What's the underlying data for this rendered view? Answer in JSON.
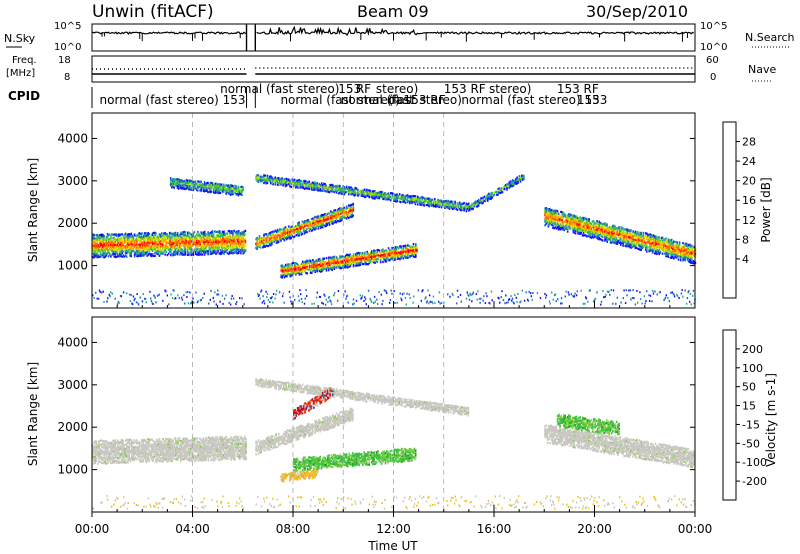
{
  "header": {
    "station": "Unwin (fitACF)",
    "beam": "Beam 09",
    "date": "30/Sep/2010"
  },
  "noise_panel": {
    "left_label": "N.Sky",
    "right_label": "N.Search",
    "left_ticks": [
      "10^5",
      "10^0"
    ],
    "right_ticks": [
      "10^5",
      "10^0"
    ]
  },
  "freq_panel": {
    "left_label_1": "Freq.",
    "left_label_2": "[MHz]",
    "right_label": "Nave",
    "left_ticks": [
      18,
      8
    ],
    "right_ticks": [
      60,
      0
    ]
  },
  "cpid": {
    "label": "CPID",
    "segments": [
      {
        "text": "normal (fast stereo) 153",
        "t": 0.3,
        "row": 2
      },
      {
        "text": "normal (fast stereo)",
        "t": 5.1,
        "row": 1
      },
      {
        "text": "normal (fast stereo) 153 RF",
        "t": 7.5,
        "row": 2
      },
      {
        "text": "153",
        "t": 9.8,
        "row": 1
      },
      {
        "text": "RF",
        "t": 10.5,
        "row": 1
      },
      {
        "text": "stereo)",
        "t": 11.3,
        "row": 1
      },
      {
        "text": "normal (fast",
        "t": 9.9,
        "row": 2
      },
      {
        "text": "(fast stereo)",
        "t": 11.8,
        "row": 2
      },
      {
        "text": "153 RF",
        "t": 14.0,
        "row": 1
      },
      {
        "text": "stereo)",
        "t": 15.8,
        "row": 1
      },
      {
        "text": "normal (fast stereo) 153",
        "t": 14.7,
        "row": 2
      },
      {
        "text": "153 RF",
        "t": 18.5,
        "row": 1
      },
      {
        "text": "153",
        "t": 19.3,
        "row": 2
      }
    ]
  },
  "chart_data": [
    {
      "type": "heatmap",
      "title": "Power",
      "ylabel": "Slant Range [km]",
      "xlabel": "Time UT",
      "xlim_hours": [
        0,
        24
      ],
      "ylim_km": [
        0,
        4600
      ],
      "yticks": [
        1000,
        2000,
        3000,
        4000
      ],
      "xticks": [
        "00:00",
        "04:00",
        "08:00",
        "12:00",
        "16:00",
        "20:00",
        "00:00"
      ],
      "colorbar": {
        "label": "Power [dB]",
        "ticks": [
          "28",
          "24",
          "20",
          "16",
          "12",
          "8",
          "4"
        ],
        "colors": [
          "#ff0000",
          "#ff5000",
          "#ff9000",
          "#ffd000",
          "#a0e000",
          "#40c040",
          "#20a0a0",
          "#2060c0",
          "#1010ff"
        ]
      },
      "bands": [
        {
          "t": [
            0,
            6.1
          ],
          "center_km": [
            1500,
            1600
          ],
          "width_km": 550,
          "strength": 0.9
        },
        {
          "t": [
            6.5,
            10.4
          ],
          "center_km": [
            1550,
            2350
          ],
          "width_km": 300,
          "strength": 0.95
        },
        {
          "t": [
            7.5,
            12.9
          ],
          "center_km": [
            900,
            1400
          ],
          "width_km": 300,
          "strength": 1.0
        },
        {
          "t": [
            18.0,
            24.0
          ],
          "center_km": [
            2200,
            1300
          ],
          "width_km": 450,
          "strength": 0.85
        },
        {
          "t": [
            6.5,
            15.0
          ],
          "center_km": [
            3100,
            2400
          ],
          "width_km": 180,
          "strength": 0.5
        },
        {
          "t": [
            15.0,
            17.2
          ],
          "center_km": [
            2400,
            3150
          ],
          "width_km": 150,
          "strength": 0.4
        },
        {
          "t": [
            3.1,
            6.0
          ],
          "center_km": [
            3000,
            2800
          ],
          "width_km": 250,
          "strength": 0.45
        }
      ]
    },
    {
      "type": "heatmap",
      "title": "Velocity",
      "ylabel": "Slant Range [km]",
      "xlabel": "Time UT",
      "xlim_hours": [
        0,
        24
      ],
      "ylim_km": [
        0,
        4600
      ],
      "yticks": [
        1000,
        2000,
        3000,
        4000
      ],
      "xticks": [
        "00:00",
        "04:00",
        "08:00",
        "12:00",
        "16:00",
        "20:00",
        "00:00"
      ],
      "colorbar": {
        "label": "Velocity [m s-1]",
        "ticks": [
          "200",
          "100",
          "50",
          "15",
          "-15",
          "-50",
          "-100",
          "-200"
        ],
        "colors": [
          "#1040c0",
          "#107060",
          "#20a020",
          "#80d040",
          "#c8c8c0",
          "#f0c020",
          "#f08020",
          "#f04010",
          "#e00000"
        ]
      },
      "bands": [
        {
          "t": [
            0,
            6.1
          ],
          "center_km": [
            1450,
            1550
          ],
          "width_km": 550,
          "class": "ground"
        },
        {
          "t": [
            6.5,
            10.4
          ],
          "center_km": [
            1550,
            2350
          ],
          "width_km": 300,
          "class": "ground"
        },
        {
          "t": [
            8.0,
            12.9
          ],
          "center_km": [
            1150,
            1400
          ],
          "width_km": 300,
          "class": "positive"
        },
        {
          "t": [
            7.5,
            9.0
          ],
          "center_km": [
            850,
            950
          ],
          "width_km": 200,
          "class": "negative_small"
        },
        {
          "t": [
            18.0,
            24.0
          ],
          "center_km": [
            1900,
            1300
          ],
          "width_km": 450,
          "class": "ground"
        },
        {
          "t": [
            6.5,
            15.0
          ],
          "center_km": [
            3100,
            2400
          ],
          "width_km": 180,
          "class": "ground"
        },
        {
          "t": [
            8.0,
            9.6
          ],
          "center_km": [
            2350,
            2900
          ],
          "width_km": 250,
          "class": "negative"
        },
        {
          "t": [
            18.5,
            21.0
          ],
          "center_km": [
            2200,
            2000
          ],
          "width_km": 300,
          "class": "positive"
        }
      ]
    }
  ]
}
